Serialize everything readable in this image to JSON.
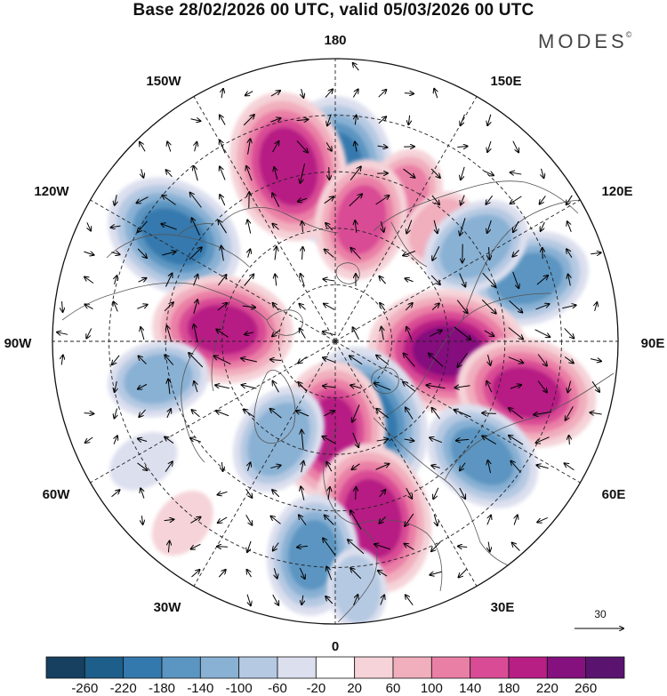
{
  "title": "Base 28/02/2026 00 UTC, valid 05/03/2026 00 UTC",
  "brand": {
    "name": "MODES",
    "mark": "©"
  },
  "map": {
    "projection": "north-polar-stereographic",
    "meridian_labels": {
      "lon_180": "180",
      "lon_150e": "150E",
      "lon_120e": "120E",
      "lon_90e": "90E",
      "lon_60e": "60E",
      "lon_30e": "30E",
      "lon_0": "0",
      "lon_30w": "30W",
      "lon_60w": "60W",
      "lon_90w": "90W",
      "lon_120w": "120W",
      "lon_150w": "150W"
    },
    "reference_vector": {
      "label": "30"
    },
    "anomalies": [
      {
        "name": "neg-180-150w",
        "lon": 180,
        "colat": 30,
        "value": -200
      },
      {
        "name": "pos-165w",
        "lon": -165,
        "colat": 32,
        "value": 200
      },
      {
        "name": "pos-155e",
        "lon": 155,
        "colat": 28,
        "value": 100
      },
      {
        "name": "pos-170e",
        "lon": 168,
        "colat": 22,
        "value": 140
      },
      {
        "name": "pos-140e",
        "lon": 138,
        "colat": 27,
        "value": 60
      },
      {
        "name": "neg-125w",
        "lon": -123,
        "colat": 34,
        "value": -180
      },
      {
        "name": "pos-95w",
        "lon": -96,
        "colat": 20,
        "value": 180
      },
      {
        "name": "neg-80w-50",
        "lon": -78,
        "colat": 32,
        "value": -100
      },
      {
        "name": "neg-105e",
        "lon": 108,
        "colat": 36,
        "value": -140
      },
      {
        "name": "neg-125e",
        "lon": 124,
        "colat": 30,
        "value": -120
      },
      {
        "name": "pos-85e",
        "lon": 85,
        "colat": 20,
        "value": 220
      },
      {
        "name": "pos-75e",
        "lon": 75,
        "colat": 35,
        "value": 180
      },
      {
        "name": "neg-25e",
        "lon": 22,
        "colat": 15,
        "value": -200
      },
      {
        "name": "pos-0",
        "lon": -2,
        "colat": 16,
        "value": 180
      },
      {
        "name": "neg-35w",
        "lon": -30,
        "colat": 20,
        "value": -120
      },
      {
        "name": "pos-15e",
        "lon": 12,
        "colat": 32,
        "value": 200
      },
      {
        "name": "neg-50e",
        "lon": 52,
        "colat": 33,
        "value": -140
      },
      {
        "name": "neg-10w",
        "lon": -6,
        "colat": 38,
        "value": -140
      },
      {
        "name": "pos-40w",
        "lon": -40,
        "colat": 42,
        "value": 40
      },
      {
        "name": "neg-60w",
        "lon": -58,
        "colat": 40,
        "value": -40
      },
      {
        "name": "neg-5e-low",
        "lon": 5,
        "colat": 44,
        "value": -60
      }
    ]
  },
  "colorbar": {
    "boundaries": [
      -260,
      -220,
      -180,
      -140,
      -100,
      -60,
      -20,
      20,
      60,
      100,
      140,
      180,
      220,
      260
    ],
    "tick_labels": [
      "-260",
      "-220",
      "-180",
      "-140",
      "-100",
      "-60",
      "-20",
      "20",
      "60",
      "100",
      "140",
      "180",
      "220",
      "260"
    ],
    "colors": [
      "#163f60",
      "#1d5e8a",
      "#3479ae",
      "#5b95c1",
      "#89b1d4",
      "#b5c9e2",
      "#dcdfee",
      "#ffffff",
      "#f5d3d8",
      "#f1aebd",
      "#ea7fa6",
      "#d94c95",
      "#b71f84",
      "#85117e",
      "#5a1470"
    ]
  }
}
